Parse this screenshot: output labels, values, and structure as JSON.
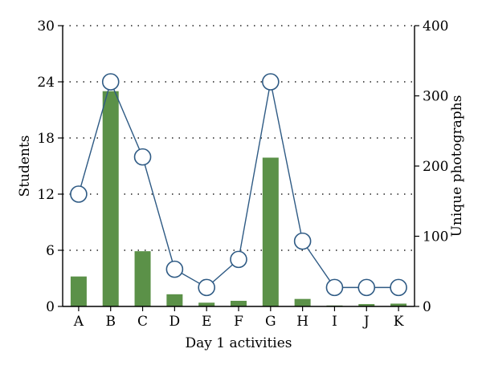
{
  "chart_data": {
    "type": "bar+line",
    "xlabel": "Day 1 activities",
    "ylabel_left": "Students",
    "ylabel_right": "Unique photographs",
    "categories": [
      "A",
      "B",
      "C",
      "D",
      "E",
      "F",
      "G",
      "H",
      "I",
      "J",
      "K"
    ],
    "ylim_left": [
      0,
      30
    ],
    "yticks_left": [
      0,
      6,
      12,
      18,
      24,
      30
    ],
    "ylim_right": [
      0,
      400
    ],
    "yticks_right": [
      0,
      100,
      200,
      300,
      400
    ],
    "grid": "horizontal dotted",
    "series": [
      {
        "kind": "bar",
        "axis": "left",
        "color": "#5b9148",
        "values": [
          3.2,
          23,
          5.9,
          1.3,
          0.4,
          0.6,
          15.9,
          0.8,
          0.1,
          0.25,
          0.3
        ]
      },
      {
        "kind": "line",
        "axis": "right",
        "color": "#2e5a84",
        "marker": "open-circle",
        "values": [
          160,
          320,
          213,
          53,
          27,
          67,
          320,
          93,
          27,
          27,
          27
        ]
      }
    ]
  }
}
